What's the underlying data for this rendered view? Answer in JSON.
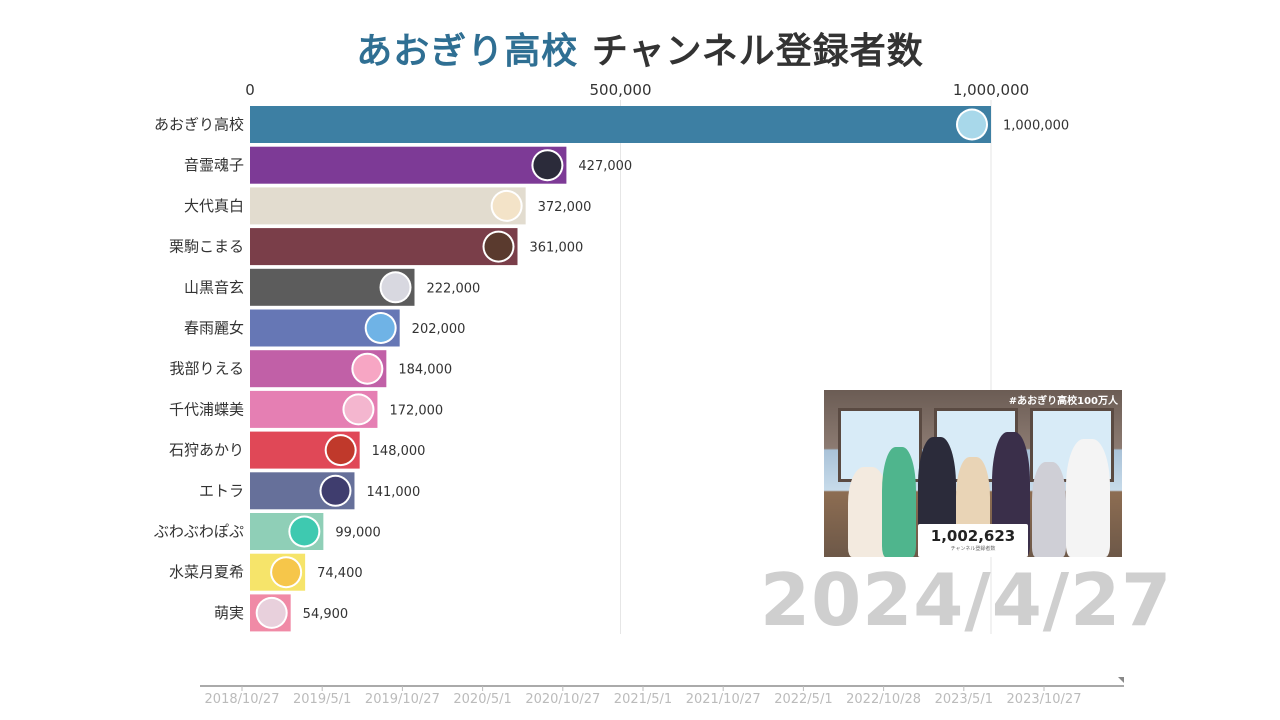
{
  "title": {
    "highlight": "あおぎり高校",
    "rest": "チャンネル登録者数"
  },
  "current_date": "2024/4/27",
  "thumbnail": {
    "tag": "#あおぎり高校100万人",
    "count": "1,002,623",
    "count_caption": "チャンネル登録者数"
  },
  "timeline": {
    "labels": [
      "2018/10/27",
      "2019/5/1",
      "2019/10/27",
      "2020/5/1",
      "2020/10/27",
      "2021/5/1",
      "2021/10/27",
      "2022/5/1",
      "2022/10/28",
      "2023/5/1",
      "2023/10/27"
    ]
  },
  "chart_data": {
    "type": "bar",
    "orientation": "horizontal",
    "title": "あおぎり高校 チャンネル登録者数",
    "xlim": [
      0,
      1000000
    ],
    "x_ticks": [
      0,
      500000,
      1000000
    ],
    "x_tick_labels": [
      "0",
      "500,000",
      "1,000,000"
    ],
    "grid": true,
    "categories": [
      "あおぎり高校",
      "音霊魂子",
      "大代真白",
      "栗駒こまる",
      "山黒音玄",
      "春雨麗女",
      "我部りえる",
      "千代浦蝶美",
      "石狩あかり",
      "エトラ",
      "ぶわぶわぽぷ",
      "水菜月夏希",
      "萌実"
    ],
    "values": [
      1000000,
      427000,
      372000,
      361000,
      222000,
      202000,
      184000,
      172000,
      148000,
      141000,
      99000,
      74400,
      54900
    ],
    "value_labels": [
      "1,000,000",
      "427,000",
      "372,000",
      "361,000",
      "222,000",
      "202,000",
      "184,000",
      "172,000",
      "148,000",
      "141,000",
      "99,000",
      "74,400",
      "54,900"
    ],
    "colors": [
      "#3d7fa3",
      "#7d3a96",
      "#e2dccf",
      "#7a3e49",
      "#5c5c5c",
      "#6677b5",
      "#c160a7",
      "#e57fb3",
      "#e04857",
      "#66709a",
      "#8fcfb7",
      "#f6e46a",
      "#f08aa6"
    ],
    "avatar_colors": [
      "#a8d8ea",
      "#2b2b3a",
      "#f3e3c8",
      "#5a3a2e",
      "#d8d8e0",
      "#6fb3e6",
      "#f7a6c4",
      "#f4b6cf",
      "#c0392b",
      "#3f3d6e",
      "#3ec9b0",
      "#f6c64a",
      "#e8d0dc"
    ]
  }
}
